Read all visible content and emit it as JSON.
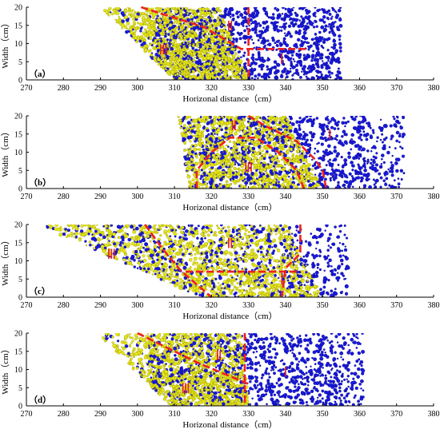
{
  "figure": {
    "colors": {
      "blue": "#1a1adf",
      "yellow": "#e6e619",
      "boundary": "#ee2020",
      "region_label": "#e8201c",
      "axis": "#000000"
    },
    "xlabel": "Horizonal distance（cm）",
    "ylabel": "Width（cm）"
  },
  "chart_data": [
    {
      "type": "scatter",
      "label": "（a）",
      "xlim": [
        270,
        380
      ],
      "ylim": [
        0,
        20
      ],
      "xticks": [
        270,
        280,
        290,
        300,
        310,
        320,
        330,
        340,
        350,
        360,
        370,
        380
      ],
      "yticks": [
        0,
        5,
        10,
        15,
        20
      ],
      "xlabel": "Horizonal distance（cm）",
      "ylabel": "Width（cm）",
      "series": [
        {
          "color": "blue",
          "x_extent": [
            305,
            355
          ]
        },
        {
          "color": "yellow",
          "yellow_left": [
            [
              290,
              20
            ],
            [
              310,
              0
            ]
          ],
          "yellow_right": [
            [
              322,
              20
            ],
            [
              330,
              0
            ]
          ]
        }
      ],
      "boundaries": [
        [
          [
            301,
            20
          ],
          [
            318,
            14.5
          ],
          [
            328,
            8.5
          ],
          [
            346,
            8.5
          ]
        ],
        [
          [
            330,
            20
          ],
          [
            330,
            0
          ]
        ]
      ],
      "regions": [
        {
          "label": "Ⅲ",
          "x": 307,
          "y": 7
        },
        {
          "label": "Ⅱ",
          "x": 325,
          "y": 13.5
        },
        {
          "label": "Ⅰ",
          "x": 339,
          "y": 4.5
        }
      ]
    },
    {
      "type": "scatter",
      "label": "（b）",
      "xlim": [
        270,
        380
      ],
      "ylim": [
        0,
        20
      ],
      "xticks": [
        270,
        280,
        290,
        300,
        310,
        320,
        330,
        340,
        350,
        360,
        370,
        380
      ],
      "yticks": [
        0,
        5,
        10,
        15,
        20
      ],
      "xlabel": "Horizonal distance（cm）",
      "ylabel": "Width（cm）",
      "series": [
        {
          "color": "blue",
          "x_extent": [
            311,
            372
          ]
        },
        {
          "color": "yellow",
          "yellow_left": [
            [
              311,
              20
            ],
            [
              314,
              0
            ]
          ],
          "yellow_right": [
            [
              340,
              20
            ],
            [
              350,
              0
            ]
          ]
        }
      ],
      "boundaries": [
        [
          [
            316,
            0
          ],
          [
            316,
            5
          ],
          [
            320,
            10
          ],
          [
            325,
            14
          ],
          [
            332,
            14
          ],
          [
            338,
            10
          ],
          [
            343,
            5
          ],
          [
            345,
            0
          ]
        ],
        [
          [
            330,
            20
          ],
          [
            335,
            17
          ],
          [
            343,
            13
          ],
          [
            348,
            8
          ],
          [
            350,
            5
          ],
          [
            351,
            0
          ]
        ]
      ],
      "regions": [
        {
          "label": "Ⅲ",
          "x": 330,
          "y": 4.5
        },
        {
          "label": "Ⅱ",
          "x": 326,
          "y": 16
        },
        {
          "label": "Ⅰ",
          "x": 352,
          "y": 13.5
        }
      ]
    },
    {
      "type": "scatter",
      "label": "（c）",
      "xlim": [
        270,
        380
      ],
      "ylim": [
        0,
        20
      ],
      "xticks": [
        270,
        280,
        290,
        300,
        310,
        320,
        330,
        340,
        350,
        360,
        370,
        380
      ],
      "yticks": [
        0,
        5,
        10,
        15,
        20
      ],
      "xlabel": "Horizonal distance（cm）",
      "ylabel": "Width（cm）",
      "series": [
        {
          "color": "blue",
          "x_extent": [
            272,
            357
          ]
        },
        {
          "color": "yellow",
          "yellow_left": [
            [
              273,
              20
            ],
            [
              317,
              0
            ]
          ],
          "yellow_right": [
            [
              340,
              20
            ],
            [
              350,
              0
            ]
          ]
        }
      ],
      "boundaries": [
        [
          [
            302,
            20
          ],
          [
            307,
            13
          ],
          [
            312,
            7
          ],
          [
            320,
            0
          ]
        ],
        [
          [
            313,
            7
          ],
          [
            344,
            7
          ]
        ],
        [
          [
            344,
            20
          ],
          [
            344,
            12
          ],
          [
            340,
            8
          ],
          [
            339,
            0
          ]
        ]
      ],
      "regions": [
        {
          "label": "Ⅲ",
          "x": 293,
          "y": 10.5
        },
        {
          "label": "Ⅱ",
          "x": 325,
          "y": 13.5
        },
        {
          "label": "Ⅰ",
          "x": 339,
          "y": 3.5
        }
      ]
    },
    {
      "type": "scatter",
      "label": "（d）",
      "xlim": [
        270,
        380
      ],
      "ylim": [
        0,
        20
      ],
      "xticks": [
        270,
        280,
        290,
        300,
        310,
        320,
        330,
        340,
        350,
        360,
        370,
        380
      ],
      "yticks": [
        0,
        5,
        10,
        15,
        20
      ],
      "xlabel": "Horizonal distance（cm）",
      "ylabel": "Width（cm）",
      "series": [
        {
          "color": "blue",
          "x_extent": [
            303,
            361
          ]
        },
        {
          "color": "yellow",
          "yellow_left": [
            [
              289,
              20
            ],
            [
              309,
              0
            ]
          ],
          "yellow_right": [
            [
              328,
              20
            ],
            [
              330,
              0
            ]
          ]
        }
      ],
      "boundaries": [
        [
          [
            300,
            20
          ],
          [
            316,
            12
          ],
          [
            330,
            6
          ]
        ],
        [
          [
            329,
            20
          ],
          [
            329,
            0
          ]
        ]
      ],
      "regions": [
        {
          "label": "Ⅲ",
          "x": 313,
          "y": 3.5
        },
        {
          "label": "Ⅱ",
          "x": 322,
          "y": 12.5
        },
        {
          "label": "Ⅰ",
          "x": 340,
          "y": 8
        }
      ]
    }
  ]
}
